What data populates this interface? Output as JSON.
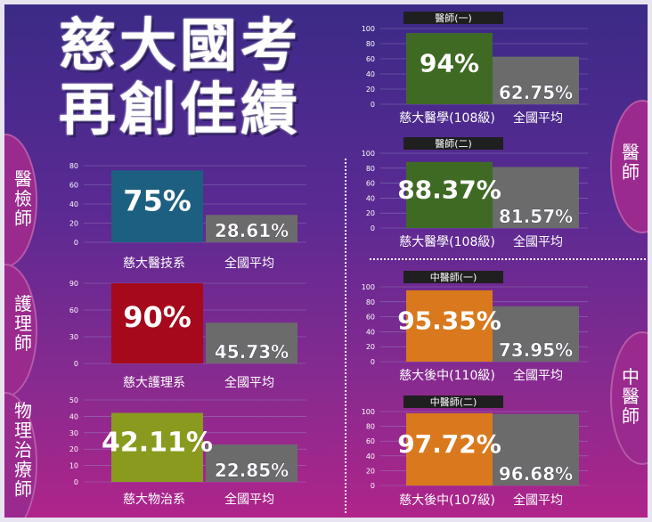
{
  "title_line1": "慈大國考",
  "title_line2": "再創佳績",
  "side_labels": {
    "medtech": "醫檢師",
    "nursing": "護理師",
    "pt": "物理治療師",
    "doctor": "醫師",
    "tcm": "中醫師"
  },
  "colors": {
    "medtech": "#1d5f80",
    "nursing": "#a5091b",
    "pt": "#8a9a1e",
    "doctor": "#3f6a24",
    "tcm": "#d9781c",
    "national": "#6b6b6b"
  },
  "chart_data": [
    {
      "id": "medtech",
      "type": "bar",
      "categories": [
        "慈大醫技系",
        "全國平均"
      ],
      "values": [
        75,
        28.61
      ],
      "labels": [
        "75%",
        "28.61%"
      ],
      "ylim": [
        0,
        80
      ],
      "ticks": [
        0,
        20,
        40,
        60,
        80
      ]
    },
    {
      "id": "nursing",
      "type": "bar",
      "categories": [
        "慈大護理系",
        "全國平均"
      ],
      "values": [
        90,
        45.73
      ],
      "labels": [
        "90%",
        "45.73%"
      ],
      "ylim": [
        0,
        90
      ],
      "ticks": [
        0,
        30,
        60,
        90
      ]
    },
    {
      "id": "pt",
      "type": "bar",
      "categories": [
        "慈大物治系",
        "全國平均"
      ],
      "values": [
        42.11,
        22.85
      ],
      "labels": [
        "42.11%",
        "22.85%"
      ],
      "ylim": [
        0,
        50
      ],
      "ticks": [
        0,
        10,
        20,
        30,
        40,
        50
      ]
    },
    {
      "id": "doc1",
      "type": "bar",
      "title": "醫師(一)",
      "categories": [
        "慈大醫學(108級)",
        "全國平均"
      ],
      "values": [
        94,
        62.75
      ],
      "labels": [
        "94%",
        "62.75%"
      ],
      "ylim": [
        0,
        100
      ],
      "ticks": [
        0,
        20,
        40,
        60,
        80,
        100
      ]
    },
    {
      "id": "doc2",
      "type": "bar",
      "title": "醫師(二)",
      "categories": [
        "慈大醫學(108級)",
        "全國平均"
      ],
      "values": [
        88.37,
        81.57
      ],
      "labels": [
        "88.37%",
        "81.57%"
      ],
      "ylim": [
        0,
        100
      ],
      "ticks": [
        0,
        20,
        40,
        60,
        80,
        100
      ]
    },
    {
      "id": "tcm1",
      "type": "bar",
      "title": "中醫師(一)",
      "categories": [
        "慈大後中(110級)",
        "全國平均"
      ],
      "values": [
        95.35,
        73.95
      ],
      "labels": [
        "95.35%",
        "73.95%"
      ],
      "ylim": [
        0,
        100
      ],
      "ticks": [
        0,
        20,
        40,
        60,
        80,
        100
      ]
    },
    {
      "id": "tcm2",
      "type": "bar",
      "title": "中醫師(二)",
      "categories": [
        "慈大後中(107級)",
        "全國平均"
      ],
      "values": [
        97.72,
        96.68
      ],
      "labels": [
        "97.72%",
        "96.68%"
      ],
      "ylim": [
        0,
        100
      ],
      "ticks": [
        0,
        20,
        40,
        60,
        80,
        100
      ]
    }
  ]
}
